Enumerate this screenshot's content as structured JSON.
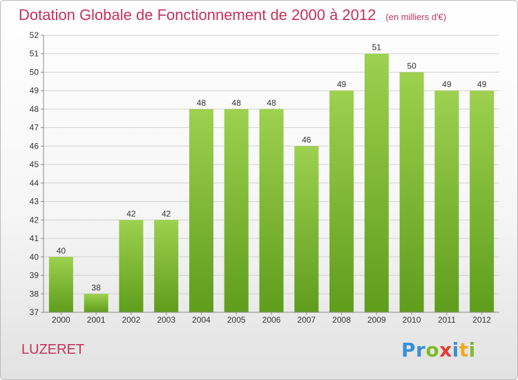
{
  "title": "Dotation Globale de Fonctionnement de 2000 à 2012",
  "unit": "(en milliers d'€)",
  "commune": "LUZERET",
  "logo": {
    "text": "Proxiti",
    "letters": [
      {
        "char": "P",
        "color": "#3a8fd6"
      },
      {
        "char": "r",
        "color": "#3a8fd6"
      },
      {
        "char": "o",
        "color": "#7cbb2b"
      },
      {
        "char": "x",
        "color": "#e53c2f"
      },
      {
        "char": "i",
        "color": "#3a8fd6"
      },
      {
        "char": "t",
        "color": "#f0a81c"
      },
      {
        "char": "i",
        "color": "#7cbb2b"
      }
    ]
  },
  "colors": {
    "title": "#c8305a",
    "bar_light": "#9dd14f",
    "bar_dark": "#5f9d1c",
    "grid": "#d0d0d0"
  },
  "chart_data": {
    "type": "bar",
    "categories": [
      "2000",
      "2001",
      "2002",
      "2003",
      "2004",
      "2005",
      "2006",
      "2007",
      "2008",
      "2009",
      "2010",
      "2011",
      "2012"
    ],
    "values": [
      40,
      38,
      42,
      42,
      48,
      48,
      48,
      46,
      49,
      51,
      50,
      49,
      49
    ],
    "ylim": [
      37,
      52
    ],
    "yticks": [
      37,
      38,
      39,
      40,
      41,
      42,
      43,
      44,
      45,
      46,
      47,
      48,
      49,
      50,
      51,
      52
    ],
    "grid": true,
    "data_labels": true
  }
}
